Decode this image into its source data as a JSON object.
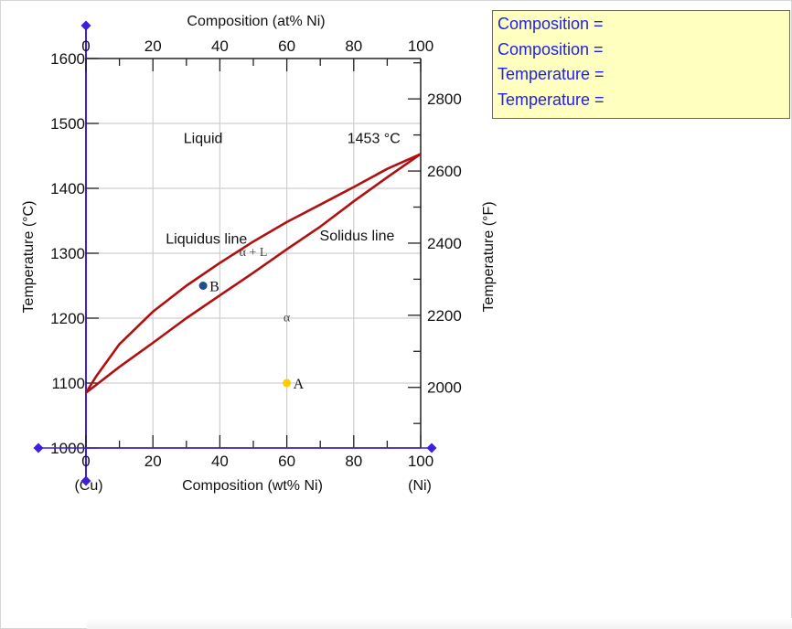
{
  "chart_data": {
    "type": "line",
    "title": "",
    "xlabel": "Composition (wt% Ni)",
    "x2label": "Composition (at% Ni)",
    "ylabel": "Temperature (°C)",
    "y2label": "Temperature (°F)",
    "xlim": [
      0,
      100
    ],
    "ylim": [
      1000,
      1600
    ],
    "y2lim": [
      1832,
      2912
    ],
    "x_ticks": [
      0,
      20,
      40,
      60,
      80,
      100
    ],
    "x2_ticks": [
      0,
      20,
      40,
      60,
      80,
      100
    ],
    "y_ticks": [
      1000,
      1100,
      1200,
      1300,
      1400,
      1500,
      1600
    ],
    "y2_ticks": [
      2000,
      2200,
      2400,
      2600,
      2800
    ],
    "x_end_labels": [
      "(Cu)",
      "(Ni)"
    ],
    "grid": true,
    "series": [
      {
        "name": "Liquidus line",
        "color": "#b01010",
        "x": [
          0,
          3,
          10,
          20,
          30,
          40,
          50,
          60,
          70,
          80,
          90,
          100
        ],
        "y": [
          1085,
          1110,
          1160,
          1210,
          1250,
          1285,
          1318,
          1348,
          1375,
          1402,
          1430,
          1453
        ]
      },
      {
        "name": "Solidus line",
        "color": "#b01010",
        "x": [
          0,
          10,
          20,
          30,
          40,
          50,
          60,
          70,
          80,
          90,
          100
        ],
        "y": [
          1085,
          1125,
          1162,
          1200,
          1235,
          1270,
          1306,
          1341,
          1380,
          1417,
          1453
        ]
      }
    ],
    "points": [
      {
        "label": "A",
        "x": 60,
        "y": 1100,
        "color": "#ffcc00"
      },
      {
        "label": "B",
        "x": 35,
        "y": 1250,
        "color": "#1f4e8c"
      }
    ],
    "annotations": [
      {
        "text": "Liquid",
        "x": 35,
        "y": 1470
      },
      {
        "text": "1453 °C",
        "x": 86,
        "y": 1470
      },
      {
        "text": "Liquidus line",
        "x": 36,
        "y": 1315
      },
      {
        "text": "Solidus line",
        "x": 81,
        "y": 1320
      },
      {
        "text": "α + L",
        "x": 50,
        "y": 1296
      },
      {
        "text": "α",
        "x": 60,
        "y": 1195
      }
    ],
    "handle_color": "#3d1fe0"
  },
  "readout": {
    "lines": [
      "Composition =",
      "Composition =",
      "Temperature =",
      "Temperature ="
    ]
  }
}
